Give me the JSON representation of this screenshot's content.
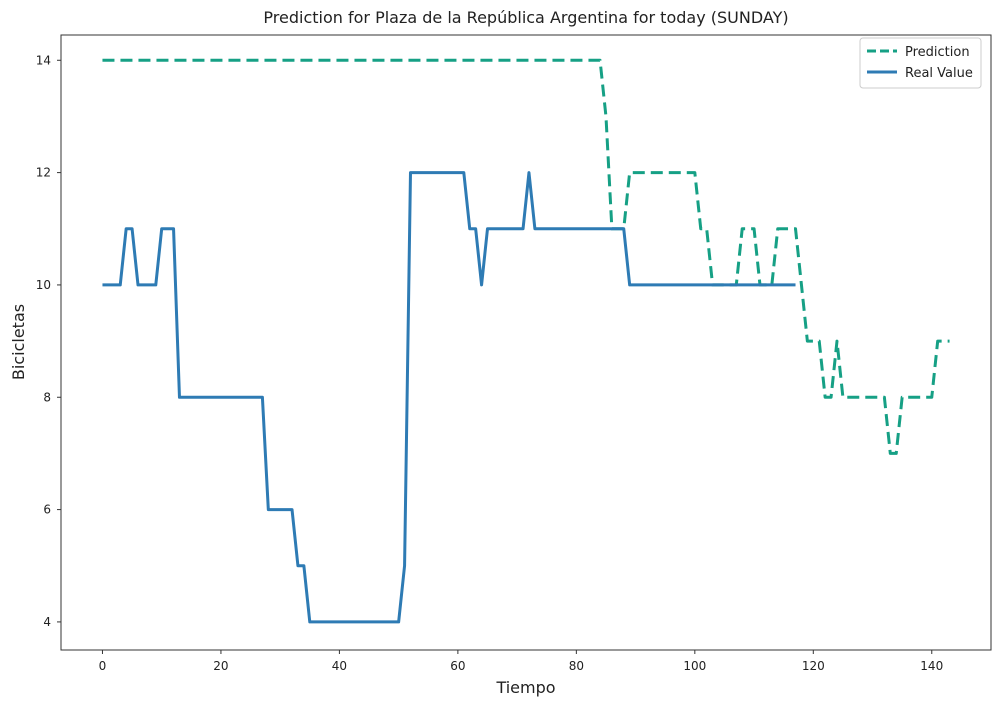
{
  "chart_data": {
    "type": "line",
    "title": "Prediction for Plaza de la República Argentina for today (SUNDAY)",
    "xlabel": "Tiempo",
    "ylabel": "Bicicletas",
    "xlim": [
      -7,
      150
    ],
    "ylim": [
      3.5,
      14.45
    ],
    "xticks": [
      0,
      20,
      40,
      60,
      80,
      100,
      120,
      140
    ],
    "yticks": [
      4,
      6,
      8,
      10,
      12,
      14
    ],
    "grid": false,
    "legend_position": "top-right",
    "series": [
      {
        "name": "Prediction",
        "color": "#16a085",
        "style": "dashed",
        "points": [
          [
            0,
            14
          ],
          [
            84,
            14
          ],
          [
            85,
            13
          ],
          [
            86,
            11
          ],
          [
            87,
            11
          ],
          [
            88,
            11
          ],
          [
            89,
            12
          ],
          [
            100,
            12
          ],
          [
            101,
            11
          ],
          [
            102,
            11
          ],
          [
            103,
            10
          ],
          [
            107,
            10
          ],
          [
            108,
            11
          ],
          [
            110,
            11
          ],
          [
            111,
            10
          ],
          [
            113,
            10
          ],
          [
            114,
            11
          ],
          [
            117,
            11
          ],
          [
            118,
            10
          ],
          [
            119,
            9
          ],
          [
            121,
            9
          ],
          [
            122,
            8
          ],
          [
            123,
            8
          ],
          [
            124,
            9
          ],
          [
            125,
            8
          ],
          [
            132,
            8
          ],
          [
            133,
            7
          ],
          [
            134,
            7
          ],
          [
            135,
            8
          ],
          [
            140,
            8
          ],
          [
            141,
            9
          ],
          [
            143,
            9
          ]
        ]
      },
      {
        "name": "Real Value",
        "color": "#2e7bb4",
        "style": "solid",
        "points": [
          [
            0,
            10
          ],
          [
            3,
            10
          ],
          [
            4,
            11
          ],
          [
            5,
            11
          ],
          [
            6,
            10
          ],
          [
            9,
            10
          ],
          [
            10,
            11
          ],
          [
            12,
            11
          ],
          [
            13,
            8
          ],
          [
            27,
            8
          ],
          [
            28,
            6
          ],
          [
            32,
            6
          ],
          [
            33,
            5
          ],
          [
            34,
            5
          ],
          [
            35,
            4
          ],
          [
            50,
            4
          ],
          [
            51,
            5
          ],
          [
            52,
            12
          ],
          [
            61,
            12
          ],
          [
            62,
            11
          ],
          [
            63,
            11
          ],
          [
            64,
            10
          ],
          [
            65,
            11
          ],
          [
            71,
            11
          ],
          [
            72,
            12
          ],
          [
            73,
            11
          ],
          [
            88,
            11
          ],
          [
            89,
            10
          ],
          [
            117,
            10
          ]
        ]
      }
    ]
  }
}
